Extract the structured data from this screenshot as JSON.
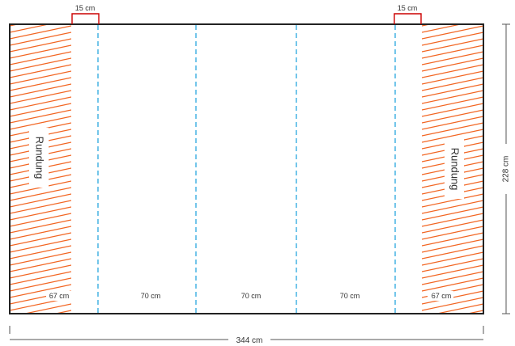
{
  "labels": {
    "overlap_left": "15 cm",
    "overlap_right": "15 cm",
    "height": "228 cm",
    "width": "344 cm",
    "rounding_left": "Rundung",
    "rounding_right": "Rundung",
    "seg1": "67 cm",
    "seg2": "70 cm",
    "seg3": "70 cm",
    "seg4": "70 cm",
    "seg5": "67 cm"
  },
  "colors": {
    "hatch": "#f26522",
    "overlap_bracket": "#cc0000",
    "fold_line": "#29a8df",
    "frame": "#222222",
    "dimension": "#555555"
  }
}
